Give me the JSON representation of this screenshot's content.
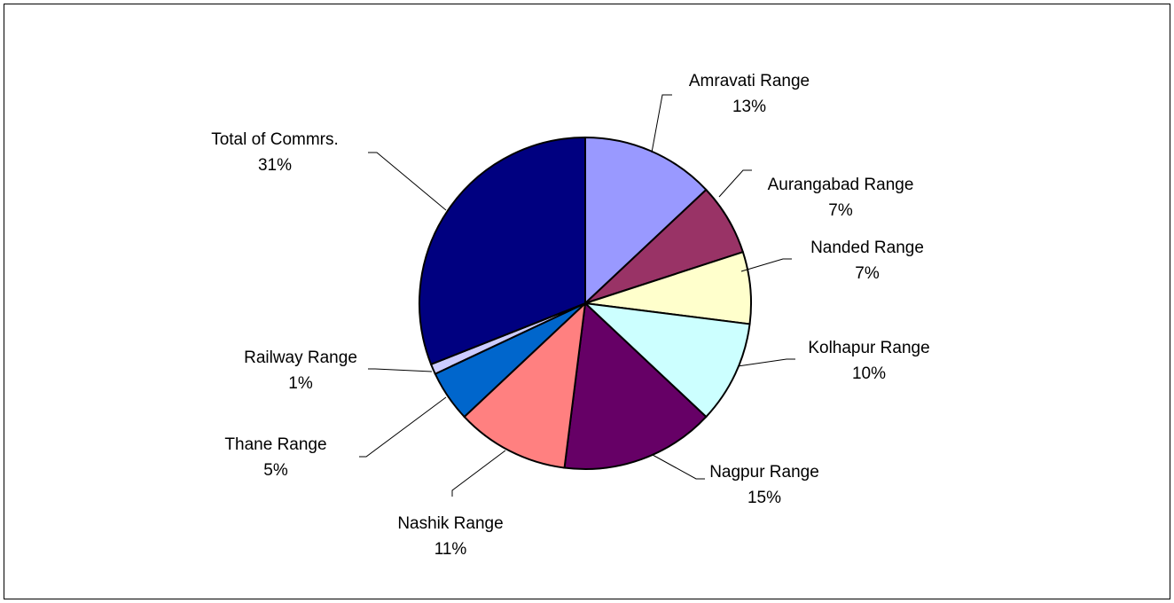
{
  "chart_data": {
    "type": "pie",
    "slices": [
      {
        "label": "Amravati Range",
        "percent": "13%",
        "value": 13,
        "color": "#9999FF"
      },
      {
        "label": "Aurangabad Range",
        "percent": "7%",
        "value": 7,
        "color": "#993366"
      },
      {
        "label": "Nanded Range",
        "percent": "7%",
        "value": 7,
        "color": "#FFFFCC"
      },
      {
        "label": "Kolhapur Range",
        "percent": "10%",
        "value": 10,
        "color": "#CCFFFF"
      },
      {
        "label": "Nagpur Range",
        "percent": "15%",
        "value": 15,
        "color": "#660066"
      },
      {
        "label": "Nashik Range",
        "percent": "11%",
        "value": 11,
        "color": "#FF8080"
      },
      {
        "label": "Thane Range",
        "percent": "5%",
        "value": 5,
        "color": "#0066CC"
      },
      {
        "label": "Railway Range",
        "percent": "1%",
        "value": 1,
        "color": "#CCCCFF"
      },
      {
        "label": "Total of Commrs.",
        "percent": "31%",
        "value": 31,
        "color": "#000080"
      }
    ]
  }
}
